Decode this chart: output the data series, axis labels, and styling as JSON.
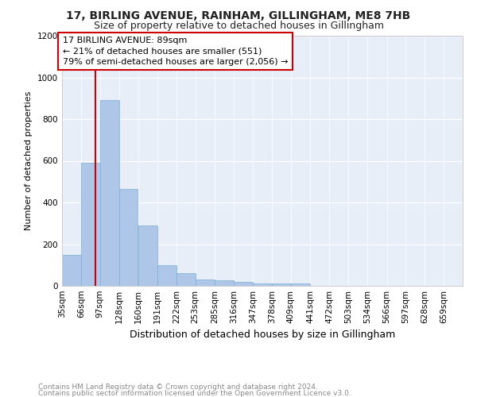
{
  "title": "17, BIRLING AVENUE, RAINHAM, GILLINGHAM, ME8 7HB",
  "subtitle": "Size of property relative to detached houses in Gillingham",
  "xlabel": "Distribution of detached houses by size in Gillingham",
  "ylabel": "Number of detached properties",
  "footnote1": "Contains HM Land Registry data © Crown copyright and database right 2024.",
  "footnote2": "Contains public sector information licensed under the Open Government Licence v3.0.",
  "annotation_line1": "17 BIRLING AVENUE: 89sqm",
  "annotation_line2": "← 21% of detached houses are smaller (551)",
  "annotation_line3": "79% of semi-detached houses are larger (2,056) →",
  "bins": [
    35,
    66,
    97,
    128,
    160,
    191,
    222,
    253,
    285,
    316,
    347,
    378,
    409,
    441,
    472,
    503,
    534,
    566,
    597,
    628,
    659
  ],
  "bin_labels": [
    "35sqm",
    "66sqm",
    "97sqm",
    "128sqm",
    "160sqm",
    "191sqm",
    "222sqm",
    "253sqm",
    "285sqm",
    "316sqm",
    "347sqm",
    "378sqm",
    "409sqm",
    "441sqm",
    "472sqm",
    "503sqm",
    "534sqm",
    "566sqm",
    "597sqm",
    "628sqm",
    "659sqm"
  ],
  "values": [
    150,
    590,
    890,
    465,
    290,
    100,
    60,
    30,
    25,
    20,
    10,
    10,
    10,
    0,
    0,
    0,
    0,
    0,
    0,
    0
  ],
  "bar_color": "#aec6e8",
  "bar_edge_color": "#7bafd4",
  "vline_color": "#cc0000",
  "vline_x": 89,
  "ylim": [
    0,
    1200
  ],
  "yticks": [
    0,
    200,
    400,
    600,
    800,
    1000,
    1200
  ],
  "background_color": "#e8eef8",
  "grid_color": "#ffffff",
  "annotation_box_color": "#ffffff",
  "annotation_border_color": "#cc0000",
  "title_fontsize": 10,
  "subtitle_fontsize": 9,
  "ylabel_fontsize": 8,
  "xlabel_fontsize": 9,
  "tick_fontsize": 7.5,
  "annotation_fontsize": 8,
  "footnote_fontsize": 6.5
}
